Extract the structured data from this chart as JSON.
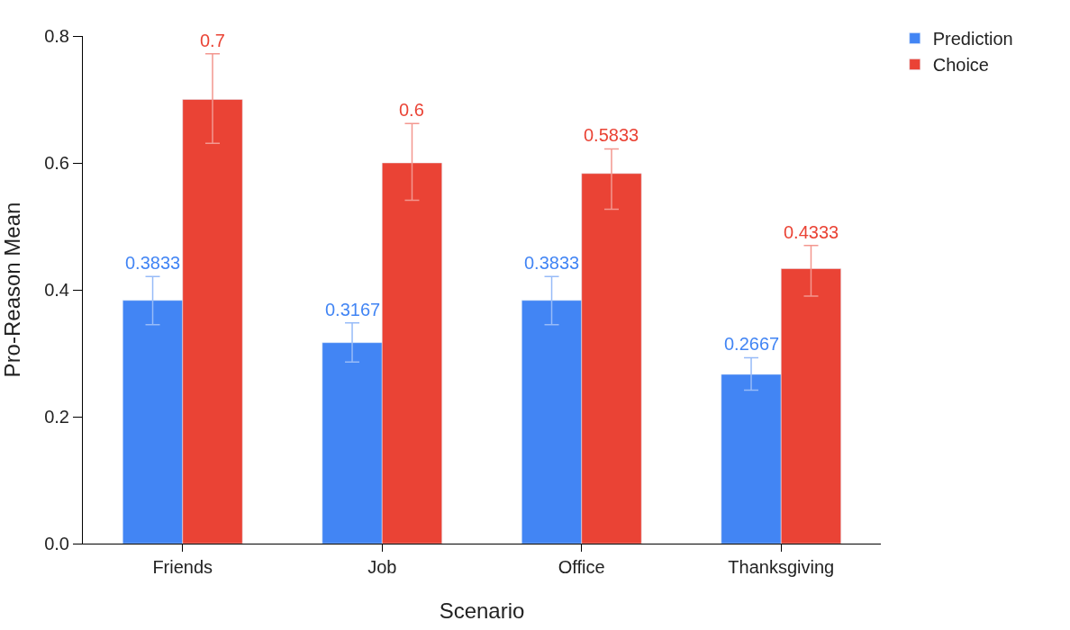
{
  "chart_data": {
    "type": "bar",
    "xlabel": "Scenario",
    "ylabel": "Pro-Reason Mean",
    "categories": [
      "Friends",
      "Job",
      "Office",
      "Thanksgiving"
    ],
    "series": [
      {
        "name": "Prediction",
        "color": "#4285f4",
        "values": [
          0.3833,
          0.3167,
          0.3833,
          0.2667
        ],
        "errors": [
          [
            0.345,
            0.421
          ],
          [
            0.286,
            0.348
          ],
          [
            0.345,
            0.421
          ],
          [
            0.242,
            0.293
          ]
        ]
      },
      {
        "name": "Choice",
        "color": "#ea4335",
        "values": [
          0.7,
          0.6,
          0.5833,
          0.4333
        ],
        "errors": [
          [
            0.631,
            0.772
          ],
          [
            0.541,
            0.662
          ],
          [
            0.527,
            0.622
          ],
          [
            0.39,
            0.47
          ]
        ]
      }
    ],
    "ylim": [
      0,
      0.8
    ],
    "yticks": [
      {
        "value": 0,
        "label": "0.0"
      },
      0.2,
      0.4,
      0.6,
      0.8
    ],
    "legend": "top right",
    "data_labels": true
  }
}
